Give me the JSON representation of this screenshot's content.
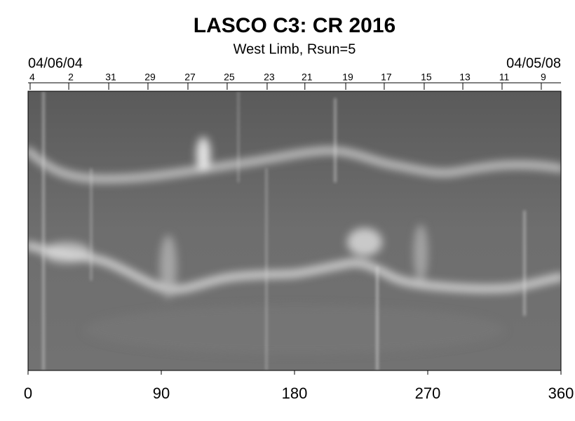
{
  "chart_data": {
    "type": "image",
    "title": "LASCO C3: CR 2016",
    "subtitle": "West Limb, Rsun=5",
    "start_date": "04/06/04",
    "end_date": "04/05/08",
    "xlim": [
      0,
      360
    ],
    "xticks": [
      0,
      90,
      180,
      270,
      360
    ],
    "top_ticks": [
      {
        "value": 1.4,
        "label": "4"
      },
      {
        "value": 27.5,
        "label": "2"
      },
      {
        "value": 54.5,
        "label": "31"
      },
      {
        "value": 81,
        "label": "29"
      },
      {
        "value": 108,
        "label": "27"
      },
      {
        "value": 134.5,
        "label": "25"
      },
      {
        "value": 161.5,
        "label": "23"
      },
      {
        "value": 187,
        "label": "21"
      },
      {
        "value": 214.6,
        "label": "19"
      },
      {
        "value": 240.6,
        "label": "17"
      },
      {
        "value": 267.6,
        "label": "15"
      },
      {
        "value": 293.7,
        "label": "13"
      },
      {
        "value": 320.2,
        "label": "11"
      },
      {
        "value": 346.7,
        "label": "9"
      }
    ]
  }
}
